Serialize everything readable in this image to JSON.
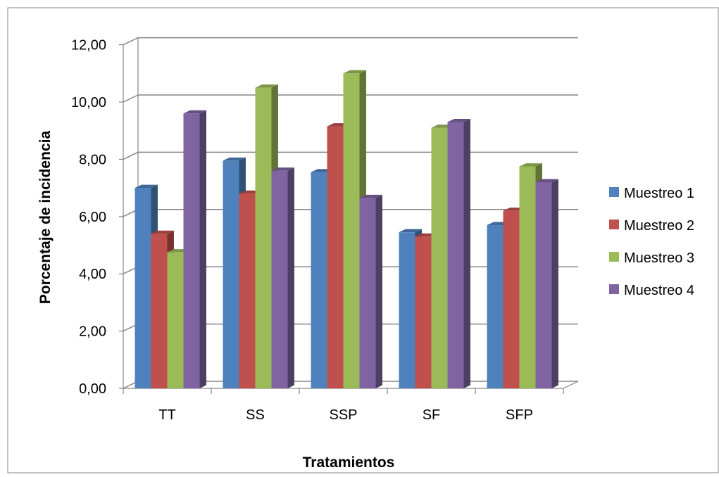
{
  "chart_data": {
    "type": "bar",
    "title": "",
    "xlabel": "Tratamientos",
    "ylabel": "Porcentaje de incidencia",
    "categories": [
      "TT",
      "SS",
      "SSP",
      "SF",
      "SFP"
    ],
    "ylim": [
      0,
      12
    ],
    "yticks": [
      "0,00",
      "2,00",
      "4,00",
      "6,00",
      "8,00",
      "10,00",
      "12,00"
    ],
    "grid": true,
    "legend_position": "right",
    "series": [
      {
        "name": "Muestreo 1",
        "color": "#4F81BD",
        "values": [
          7.0,
          7.95,
          7.55,
          5.45,
          5.7
        ]
      },
      {
        "name": "Muestreo 2",
        "color": "#C0504D",
        "values": [
          5.4,
          6.8,
          9.15,
          5.3,
          6.2
        ]
      },
      {
        "name": "Muestreo 3",
        "color": "#9BBB59",
        "values": [
          4.75,
          10.5,
          11.0,
          9.1,
          7.75
        ]
      },
      {
        "name": "Muestreo 4",
        "color": "#8064A2",
        "values": [
          9.6,
          7.6,
          6.65,
          9.3,
          7.2
        ]
      }
    ]
  }
}
